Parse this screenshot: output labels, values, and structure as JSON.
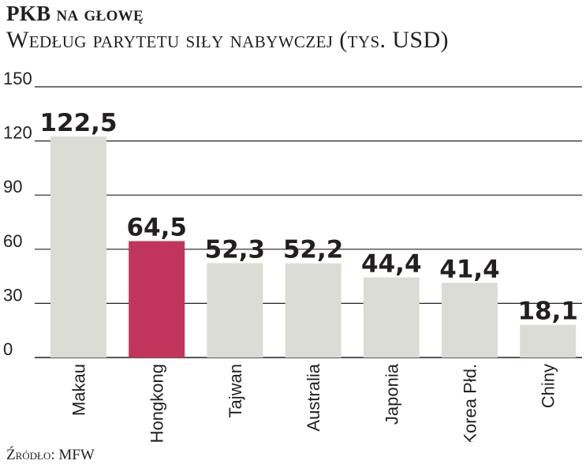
{
  "header": {
    "title": "PKB na głowę",
    "subtitle": "Według parytetu siły nabywczej (tys. USD)"
  },
  "footer": {
    "source": "Źródło: MFW"
  },
  "colors": {
    "bar_default": "#dcdcd6",
    "bar_highlight": "#c2355a",
    "grid": "#231f20"
  },
  "chart_data": {
    "type": "bar",
    "categories": [
      "Makau",
      "Hongkong",
      "Tajwan",
      "Australia",
      "Japonia",
      "Korea Płd.",
      "Chiny"
    ],
    "values": [
      122.5,
      64.5,
      52.3,
      52.2,
      44.4,
      41.4,
      18.1
    ],
    "value_labels": [
      "122,5",
      "64,5",
      "52,3",
      "52,2",
      "44,4",
      "41,4",
      "18,1"
    ],
    "highlight": "Hongkong",
    "y_ticks": [
      0,
      30,
      60,
      90,
      120,
      150
    ],
    "ylim": [
      0,
      150
    ],
    "grid": true
  }
}
